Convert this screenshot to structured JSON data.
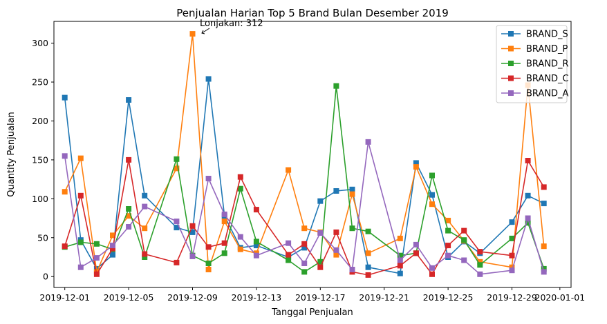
{
  "chart_data": {
    "type": "line",
    "title": "Penjualan Harian Top 5 Brand Bulan Desember 2019",
    "xlabel": "Tanggal Penjualan",
    "ylabel": "Quantity Penjualan",
    "xlim": [
      "2019-11-30",
      "2020-01-02"
    ],
    "ylim": [
      -14,
      328
    ],
    "x_ticks": [
      "2019-12-01",
      "2019-12-05",
      "2019-12-09",
      "2019-12-13",
      "2019-12-17",
      "2019-12-21",
      "2019-12-25",
      "2019-12-29",
      "2020-01-01"
    ],
    "y_ticks": [
      0,
      50,
      100,
      150,
      200,
      250,
      300
    ],
    "grid": false,
    "legend_position": "top-right",
    "annotation": {
      "text": "Lonjakan: 312",
      "x": "2019-12-09",
      "y": 312
    },
    "series": [
      {
        "name": "BRAND_S",
        "color": "#1f77b4",
        "points": [
          [
            "2019-12-01",
            230
          ],
          [
            "2019-12-02",
            47
          ],
          [
            "2019-12-03",
            10
          ],
          [
            "2019-12-04",
            28
          ],
          [
            "2019-12-05",
            227
          ],
          [
            "2019-12-06",
            104
          ],
          [
            "2019-12-08",
            63
          ],
          [
            "2019-12-09",
            57
          ],
          [
            "2019-12-10",
            254
          ],
          [
            "2019-12-11",
            78
          ],
          [
            "2019-12-12",
            37
          ],
          [
            "2019-12-13",
            40
          ],
          [
            "2019-12-15",
            25
          ],
          [
            "2019-12-16",
            37
          ],
          [
            "2019-12-17",
            97
          ],
          [
            "2019-12-18",
            110
          ],
          [
            "2019-12-19",
            112
          ],
          [
            "2019-12-20",
            12
          ],
          [
            "2019-12-22",
            4
          ],
          [
            "2019-12-23",
            146
          ],
          [
            "2019-12-24",
            105
          ],
          [
            "2019-12-25",
            25
          ],
          [
            "2019-12-26",
            45
          ],
          [
            "2019-12-27",
            30
          ],
          [
            "2019-12-29",
            70
          ],
          [
            "2019-12-30",
            104
          ],
          [
            "2019-12-31",
            94
          ]
        ]
      },
      {
        "name": "BRAND_P",
        "color": "#ff7f0e",
        "points": [
          [
            "2019-12-01",
            109
          ],
          [
            "2019-12-02",
            152
          ],
          [
            "2019-12-03",
            6
          ],
          [
            "2019-12-04",
            53
          ],
          [
            "2019-12-05",
            78
          ],
          [
            "2019-12-06",
            62
          ],
          [
            "2019-12-08",
            139
          ],
          [
            "2019-12-09",
            312
          ],
          [
            "2019-12-10",
            9
          ],
          [
            "2019-12-11",
            71
          ],
          [
            "2019-12-12",
            35
          ],
          [
            "2019-12-13",
            30
          ],
          [
            "2019-12-15",
            137
          ],
          [
            "2019-12-16",
            62
          ],
          [
            "2019-12-17",
            57
          ],
          [
            "2019-12-18",
            28
          ],
          [
            "2019-12-19",
            106
          ],
          [
            "2019-12-20",
            30
          ],
          [
            "2019-12-22",
            49
          ],
          [
            "2019-12-23",
            141
          ],
          [
            "2019-12-24",
            93
          ],
          [
            "2019-12-25",
            72
          ],
          [
            "2019-12-26",
            46
          ],
          [
            "2019-12-27",
            19
          ],
          [
            "2019-12-29",
            12
          ],
          [
            "2019-12-30",
            246
          ],
          [
            "2019-12-31",
            39
          ]
        ]
      },
      {
        "name": "BRAND_R",
        "color": "#2ca02c",
        "points": [
          [
            "2019-12-01",
            38
          ],
          [
            "2019-12-02",
            44
          ],
          [
            "2019-12-03",
            42
          ],
          [
            "2019-12-04",
            35
          ],
          [
            "2019-12-05",
            87
          ],
          [
            "2019-12-06",
            25
          ],
          [
            "2019-12-08",
            151
          ],
          [
            "2019-12-09",
            27
          ],
          [
            "2019-12-10",
            17
          ],
          [
            "2019-12-11",
            30
          ],
          [
            "2019-12-12",
            113
          ],
          [
            "2019-12-13",
            45
          ],
          [
            "2019-12-15",
            21
          ],
          [
            "2019-12-16",
            6
          ],
          [
            "2019-12-17",
            19
          ],
          [
            "2019-12-18",
            245
          ],
          [
            "2019-12-19",
            62
          ],
          [
            "2019-12-20",
            58
          ],
          [
            "2019-12-22",
            27
          ],
          [
            "2019-12-23",
            30
          ],
          [
            "2019-12-24",
            130
          ],
          [
            "2019-12-25",
            59
          ],
          [
            "2019-12-26",
            47
          ],
          [
            "2019-12-27",
            15
          ],
          [
            "2019-12-29",
            49
          ],
          [
            "2019-12-30",
            69
          ],
          [
            "2019-12-31",
            10
          ]
        ]
      },
      {
        "name": "BRAND_C",
        "color": "#d62728",
        "points": [
          [
            "2019-12-01",
            39
          ],
          [
            "2019-12-02",
            104
          ],
          [
            "2019-12-03",
            3
          ],
          [
            "2019-12-04",
            36
          ],
          [
            "2019-12-05",
            150
          ],
          [
            "2019-12-06",
            29
          ],
          [
            "2019-12-08",
            18
          ],
          [
            "2019-12-09",
            65
          ],
          [
            "2019-12-10",
            38
          ],
          [
            "2019-12-11",
            43
          ],
          [
            "2019-12-12",
            128
          ],
          [
            "2019-12-13",
            86
          ],
          [
            "2019-12-15",
            28
          ],
          [
            "2019-12-16",
            42
          ],
          [
            "2019-12-17",
            12
          ],
          [
            "2019-12-18",
            57
          ],
          [
            "2019-12-19",
            6
          ],
          [
            "2019-12-20",
            2
          ],
          [
            "2019-12-22",
            14
          ],
          [
            "2019-12-23",
            30
          ],
          [
            "2019-12-24",
            3
          ],
          [
            "2019-12-25",
            40
          ],
          [
            "2019-12-26",
            59
          ],
          [
            "2019-12-27",
            32
          ],
          [
            "2019-12-29",
            27
          ],
          [
            "2019-12-30",
            149
          ],
          [
            "2019-12-31",
            115
          ]
        ]
      },
      {
        "name": "BRAND_A",
        "color": "#9467bd",
        "points": [
          [
            "2019-12-01",
            155
          ],
          [
            "2019-12-02",
            12
          ],
          [
            "2019-12-03",
            24
          ],
          [
            "2019-12-04",
            40
          ],
          [
            "2019-12-05",
            64
          ],
          [
            "2019-12-06",
            90
          ],
          [
            "2019-12-08",
            71
          ],
          [
            "2019-12-09",
            26
          ],
          [
            "2019-12-10",
            126
          ],
          [
            "2019-12-11",
            80
          ],
          [
            "2019-12-12",
            51
          ],
          [
            "2019-12-13",
            27
          ],
          [
            "2019-12-15",
            43
          ],
          [
            "2019-12-16",
            17
          ],
          [
            "2019-12-17",
            56
          ],
          [
            "2019-12-18",
            34
          ],
          [
            "2019-12-19",
            9
          ],
          [
            "2019-12-20",
            173
          ],
          [
            "2019-12-22",
            21
          ],
          [
            "2019-12-23",
            41
          ],
          [
            "2019-12-24",
            11
          ],
          [
            "2019-12-25",
            27
          ],
          [
            "2019-12-26",
            21
          ],
          [
            "2019-12-27",
            3
          ],
          [
            "2019-12-29",
            8
          ],
          [
            "2019-12-30",
            75
          ],
          [
            "2019-12-31",
            6
          ]
        ]
      }
    ]
  }
}
